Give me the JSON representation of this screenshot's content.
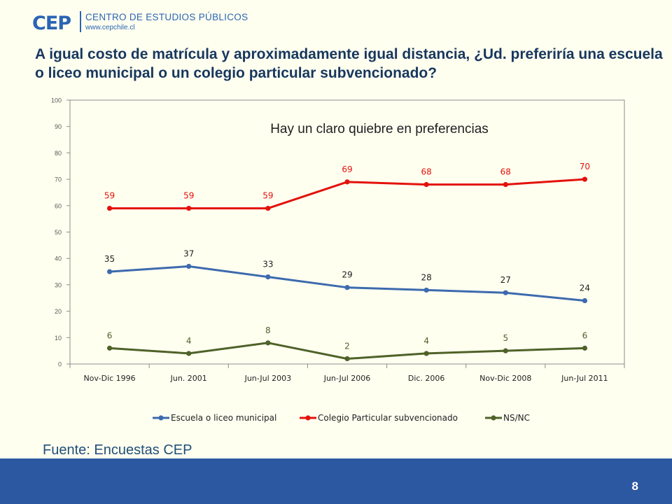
{
  "logo": {
    "mark": "CEP",
    "name": "CENTRO DE ESTUDIOS PÚBLICOS",
    "url": "www.cepchile.cl"
  },
  "title": "A igual costo de matrícula y aproximadamente igual distancia, ¿Ud. preferiría una escuela o liceo municipal o un colegio particular subvencionado?",
  "source": "Fuente: Encuestas CEP",
  "page_number": "8",
  "colors": {
    "background": "#FFFFF0",
    "footer": "#2B58A0",
    "title": "#17375E"
  },
  "chart_data": {
    "type": "line",
    "annotation": "Hay un claro quiebre en preferencias",
    "categories": [
      "Nov-Dic 1996",
      "Jun. 2001",
      "Jun-Jul 2003",
      "Jun-Jul 2006",
      "Dic. 2006",
      "Nov-Dic 2008",
      "Jun-Jul 2011"
    ],
    "ylim": [
      0,
      100
    ],
    "yticks": [
      0,
      10,
      20,
      30,
      40,
      50,
      60,
      70,
      80,
      90,
      100
    ],
    "grid": false,
    "legend_position": "bottom",
    "series": [
      {
        "name": "Escuela o liceo municipal",
        "color": "#3C6AAE",
        "label_color": "#1F1F1F",
        "values": [
          35,
          37,
          33,
          29,
          28,
          27,
          24
        ]
      },
      {
        "name": "Colegio Particular subvencionado",
        "color": "#E3120B",
        "label_color": "#E3120B",
        "values": [
          59,
          59,
          59,
          69,
          68,
          68,
          70
        ]
      },
      {
        "name": "NS/NC",
        "color": "#4F6228",
        "label_color": "#4F6228",
        "values": [
          6,
          4,
          8,
          2,
          4,
          5,
          6
        ]
      }
    ]
  }
}
